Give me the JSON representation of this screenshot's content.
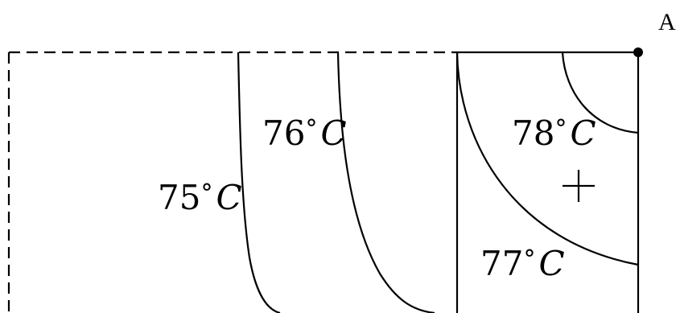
{
  "diagram": {
    "point": {
      "label": "A"
    },
    "isotherms": [
      {
        "id": "t75",
        "value": "75",
        "degree": "°",
        "unit": "C"
      },
      {
        "id": "t76",
        "value": "76",
        "degree": "°",
        "unit": "C"
      },
      {
        "id": "t77",
        "value": "77",
        "degree": "°",
        "unit": "C"
      },
      {
        "id": "t78",
        "value": "78",
        "degree": "°",
        "unit": "C"
      }
    ],
    "colors": {
      "stroke": "#000000",
      "background": "#ffffff"
    }
  }
}
